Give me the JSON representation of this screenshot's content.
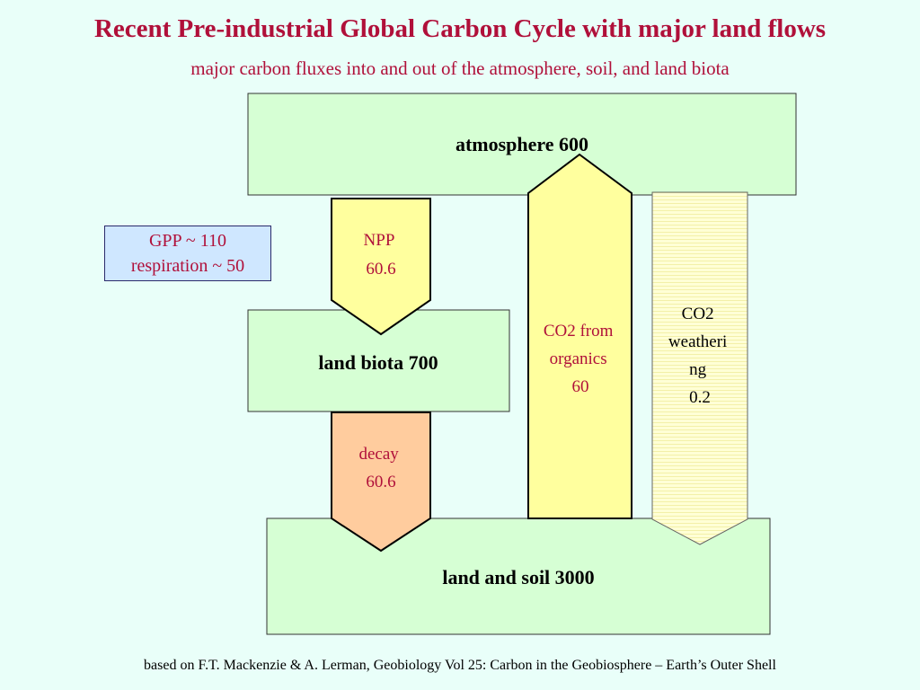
{
  "title": "Recent Pre-industrial Global Carbon Cycle with major land flows",
  "subtitle": "major carbon fluxes into and out of the atmosphere, soil, and land biota",
  "reservoirs": {
    "atmosphere": "atmosphere 600",
    "land_biota": "land biota 700",
    "land_soil": "land and soil 3000"
  },
  "fluxes": {
    "npp": [
      "NPP",
      "60.6"
    ],
    "decay": [
      "decay",
      "60.6"
    ],
    "co2_organics": [
      "CO2 from",
      "organics",
      "60"
    ],
    "co2_weathering": [
      "CO2",
      "weatheri",
      "ng",
      "0.2"
    ]
  },
  "note": {
    "line1": "GPP ~ 110",
    "line2": "respiration ~ 50"
  },
  "source": "based on F.T. Mackenzie & A. Lerman, Geobiology Vol 25: Carbon in the Geobiosphere – Earth’s Outer Shell",
  "colors": {
    "background": "#e9fff9",
    "title": "#b0103a",
    "reservoir_fill": "#d6ffd4",
    "arrow_yellow": "#ffff9e",
    "arrow_decay": "#ffcc9e",
    "arrow_weathering": "#ffffd0",
    "note_fill": "#cfe7ff"
  }
}
